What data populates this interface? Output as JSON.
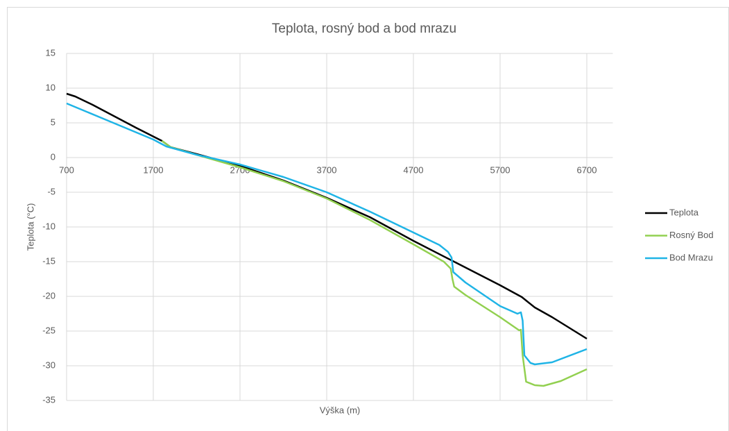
{
  "chart_data": {
    "type": "line",
    "title": "Teplota, rosný bod a bod mrazu",
    "xlabel": "Výška (m)",
    "ylabel": "Teplota (°C)",
    "xlim": [
      700,
      7000
    ],
    "xticks": [
      700,
      1700,
      2700,
      3700,
      4700,
      5700,
      6700
    ],
    "ylim": [
      -35,
      15
    ],
    "yticks": [
      15,
      10,
      5,
      0,
      -5,
      -10,
      -15,
      -20,
      -25,
      -30,
      -35
    ],
    "grid": true,
    "legend": "right",
    "series": [
      {
        "name": "Teplota",
        "color": "#000000",
        "x": [
          700,
          800,
          1000,
          1500,
          1800,
          1900,
          2200,
          2700,
          3200,
          3700,
          4200,
          4700,
          5200,
          5700,
          5950,
          6000,
          6100,
          6300,
          6700
        ],
        "values": [
          9.2,
          8.8,
          7.6,
          4.3,
          2.4,
          1.5,
          0.5,
          -1.2,
          -3.3,
          -5.8,
          -8.6,
          -12.0,
          -15.2,
          -18.4,
          -20.1,
          -20.6,
          -21.6,
          -23.0,
          -26.1
        ]
      },
      {
        "name": "Rosný Bod",
        "color": "#92d050",
        "x": [
          1800,
          1900,
          2200,
          2700,
          3200,
          3700,
          4200,
          4700,
          5050,
          5130,
          5150,
          5170,
          5300,
          5700,
          5920,
          5940,
          5960,
          6000,
          6100,
          6200,
          6400,
          6700
        ],
        "values": [
          2.4,
          1.5,
          0.4,
          -1.4,
          -3.4,
          -5.9,
          -9.0,
          -12.5,
          -15.0,
          -16.0,
          -17.5,
          -18.6,
          -19.8,
          -23.0,
          -24.9,
          -24.8,
          -28.5,
          -32.3,
          -32.8,
          -32.9,
          -32.2,
          -30.5
        ]
      },
      {
        "name": "Bod Mrazu",
        "color": "#1fb4e6",
        "x": [
          700,
          1200,
          1700,
          1850,
          2200,
          2700,
          3200,
          3700,
          4200,
          4700,
          5000,
          5100,
          5140,
          5160,
          5300,
          5700,
          5900,
          5940,
          5960,
          5980,
          6050,
          6100,
          6300,
          6700
        ],
        "values": [
          7.8,
          5.2,
          2.6,
          1.6,
          0.4,
          -1.0,
          -2.8,
          -5.0,
          -7.8,
          -10.8,
          -12.6,
          -13.6,
          -14.4,
          -16.5,
          -18.0,
          -21.4,
          -22.5,
          -22.3,
          -23.5,
          -28.5,
          -29.6,
          -29.8,
          -29.5,
          -27.6
        ]
      }
    ]
  }
}
